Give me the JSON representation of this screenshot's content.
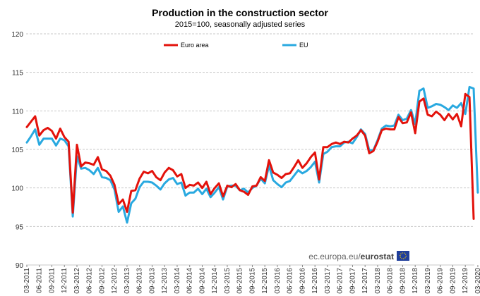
{
  "chart_data": {
    "type": "line",
    "title": "Production in the construction sector",
    "subtitle": "2015=100, seasonally adjusted series",
    "ylim": [
      90,
      120
    ],
    "yticks": [
      90,
      95,
      100,
      105,
      110,
      115,
      120
    ],
    "grid": true,
    "legend_position": "top",
    "x_start": "2011-03",
    "x_end": "2020-03",
    "x_tick_labels": [
      "03-2011",
      "06-2011",
      "09-2011",
      "12-2011",
      "03-2012",
      "06-2012",
      "09-2012",
      "12-2012",
      "03-2013",
      "06-2013",
      "09-2013",
      "12-2013",
      "03-2014",
      "06-2014",
      "09-2014",
      "12-2014",
      "03-2015",
      "06-2015",
      "09-2015",
      "12-2015",
      "03-2016",
      "06-2016",
      "09-2016",
      "12-2016",
      "03-2017",
      "06-2017",
      "09-2017",
      "12-2017",
      "03-2018",
      "06-2018",
      "09-2018",
      "12-2018",
      "03-2019",
      "06-2019",
      "09-2019",
      "12-2019",
      "03-2020"
    ],
    "series": [
      {
        "name": "Euro area",
        "color": "#e3120b",
        "values": [
          107.9,
          108.6,
          109.3,
          106.8,
          107.5,
          107.8,
          107.4,
          106.4,
          107.7,
          106.6,
          106.0,
          96.8,
          105.6,
          102.8,
          103.3,
          103.2,
          103.0,
          104.0,
          102.4,
          102.2,
          101.6,
          100.4,
          97.9,
          98.5,
          96.9,
          99.6,
          99.7,
          101.2,
          102.1,
          101.9,
          102.2,
          101.4,
          101.0,
          102.0,
          102.6,
          102.3,
          101.5,
          101.8,
          100.0,
          100.4,
          100.3,
          100.7,
          100.0,
          100.8,
          99.2,
          100.0,
          100.6,
          98.9,
          100.3,
          100.1,
          100.5,
          99.7,
          99.5,
          99.1,
          100.2,
          100.3,
          101.4,
          100.9,
          103.6,
          102.0,
          101.7,
          101.3,
          101.8,
          101.9,
          102.7,
          103.6,
          102.6,
          103.2,
          104.0,
          104.6,
          101.1,
          105.3,
          105.3,
          105.7,
          105.9,
          105.7,
          106.0,
          105.9,
          106.4,
          106.8,
          107.5,
          106.8,
          104.5,
          104.8,
          106.0,
          107.5,
          107.7,
          107.6,
          107.6,
          109.2,
          108.4,
          108.5,
          109.8,
          107.1,
          111.2,
          111.6,
          109.5,
          109.3,
          109.9,
          109.5,
          108.8,
          109.6,
          108.9,
          109.6,
          108.0,
          112.2,
          111.8,
          96.0
        ]
      },
      {
        "name": "EU",
        "color": "#29a9e0",
        "values": [
          105.9,
          106.7,
          107.6,
          105.6,
          106.4,
          106.4,
          106.4,
          105.5,
          106.4,
          106.2,
          105.4,
          96.3,
          104.1,
          102.5,
          102.6,
          102.3,
          101.8,
          102.6,
          101.4,
          101.3,
          101.0,
          99.8,
          96.9,
          97.6,
          95.5,
          98.0,
          98.6,
          100.1,
          100.8,
          100.8,
          100.7,
          100.3,
          99.8,
          100.6,
          101.1,
          101.3,
          100.5,
          100.7,
          99.0,
          99.4,
          99.4,
          99.9,
          99.2,
          99.9,
          98.8,
          99.4,
          100.1,
          98.5,
          100.2,
          100.3,
          100.3,
          99.7,
          99.9,
          99.4,
          100.0,
          100.3,
          101.2,
          100.6,
          102.9,
          101.0,
          100.5,
          100.1,
          100.7,
          100.9,
          101.6,
          102.3,
          101.9,
          102.2,
          102.7,
          103.4,
          100.7,
          104.4,
          104.7,
          105.3,
          105.4,
          105.4,
          105.9,
          106.0,
          105.8,
          106.6,
          107.6,
          107.0,
          104.9,
          104.9,
          106.2,
          107.7,
          108.1,
          108.0,
          108.1,
          109.5,
          108.8,
          109.0,
          110.1,
          108.3,
          112.6,
          112.9,
          110.4,
          110.6,
          110.9,
          110.8,
          110.5,
          110.1,
          110.7,
          110.4,
          111.0,
          109.6,
          113.1,
          112.9,
          99.4
        ]
      }
    ]
  },
  "credit": {
    "prefix": "ec.europa.eu/",
    "bold": "eurostat"
  }
}
